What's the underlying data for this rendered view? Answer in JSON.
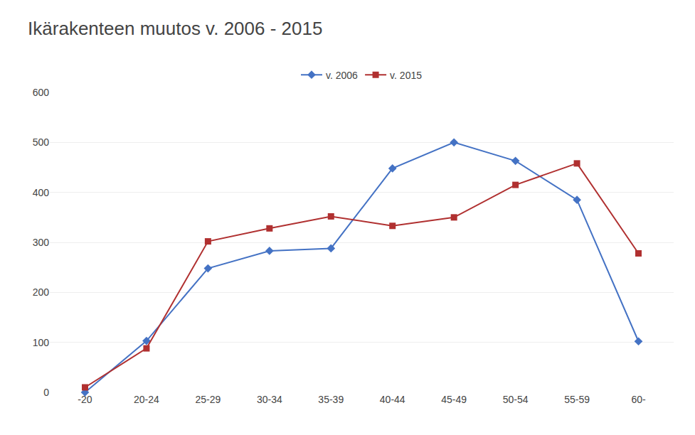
{
  "chart_data": {
    "type": "line",
    "title": "Ikärakenteen muutos v. 2006 - 2015",
    "categories": [
      "-20",
      "20-24",
      "25-29",
      "30-34",
      "35-39",
      "40-44",
      "45-49",
      "50-54",
      "55-59",
      "60-"
    ],
    "series": [
      {
        "name": "v. 2006",
        "color": "#4472C4",
        "marker": "diamond",
        "values": [
          0,
          103,
          248,
          283,
          288,
          448,
          500,
          463,
          385,
          102
        ]
      },
      {
        "name": "v. 2015",
        "color": "#B03030",
        "marker": "square",
        "values": [
          10,
          88,
          302,
          328,
          352,
          333,
          350,
          415,
          458,
          278
        ]
      }
    ],
    "ylim": [
      0,
      600
    ],
    "yticks": [
      0,
      100,
      200,
      300,
      400,
      500,
      600
    ],
    "grid": true,
    "legend": "top"
  }
}
